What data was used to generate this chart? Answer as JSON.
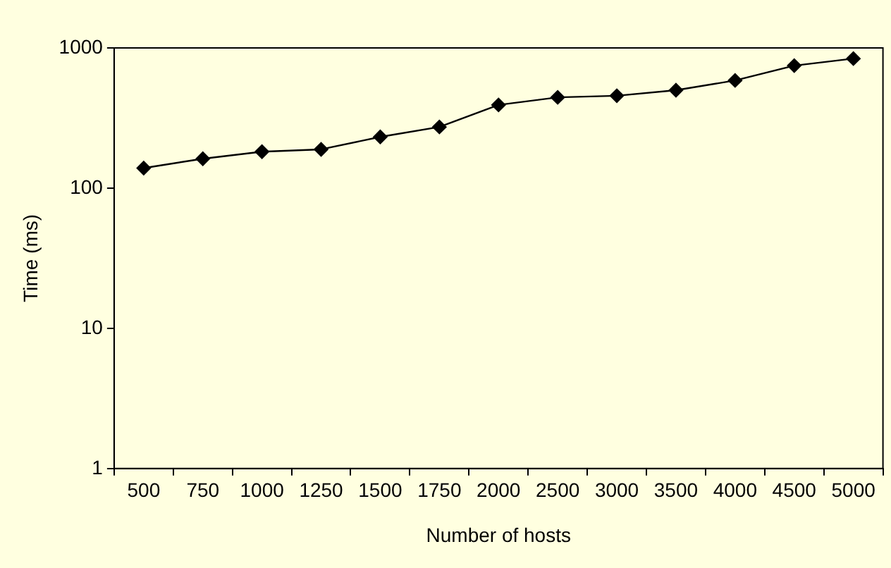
{
  "chart_data": {
    "type": "line",
    "xlabel": "Number of hosts",
    "ylabel": "Time (ms)",
    "categories": [
      "500",
      "750",
      "1000",
      "1250",
      "1500",
      "1750",
      "2000",
      "2500",
      "3000",
      "3500",
      "4000",
      "4500",
      "5000"
    ],
    "series": [
      {
        "color": "#000000",
        "values": [
          139,
          162,
          182,
          189,
          232,
          273,
          392,
          444,
          456,
          499,
          586,
          748,
          839
        ]
      }
    ],
    "log": true,
    "ylim": [
      1,
      1000
    ],
    "yticks": [
      1,
      10,
      100,
      1000
    ],
    "grid": false,
    "legend": false,
    "marker": "diamond",
    "line_style": "solid"
  }
}
